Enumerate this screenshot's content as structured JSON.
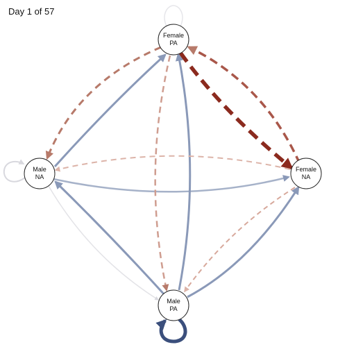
{
  "header": {
    "day_label": "Day 1 of 57"
  },
  "colors": {
    "positive": "#8a99b8",
    "positive_strong": "#3b4f7c",
    "negative": "#b77a6a",
    "negative_strong": "#8b2a1e",
    "faint": "#d8d8de",
    "node_stroke": "#222222",
    "node_fill": "#ffffff"
  },
  "nodes": [
    {
      "id": "female-pa",
      "line1": "Female",
      "line2": "PA"
    },
    {
      "id": "male-na",
      "line1": "Male",
      "line2": "NA"
    },
    {
      "id": "female-na",
      "line1": "Female",
      "line2": "NA"
    },
    {
      "id": "male-pa",
      "line1": "Male",
      "line2": "PA"
    }
  ]
}
